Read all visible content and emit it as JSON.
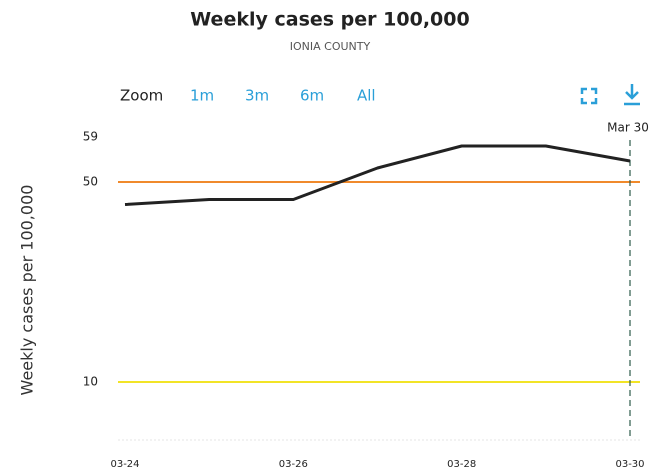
{
  "chart_data": {
    "type": "line",
    "title": "Weekly cases per 100,000",
    "subtitle": "IONIA COUNTY",
    "y_label": "Weekly cases per 100,000",
    "zoom": {
      "label": "Zoom",
      "options": [
        "1m",
        "3m",
        "6m",
        "All"
      ]
    },
    "x": [
      "03-24",
      "03-25",
      "03-26",
      "03-27",
      "03-28",
      "03-29",
      "03-30"
    ],
    "series": [
      {
        "name": "Weekly cases per 100,000",
        "color": "#222222",
        "values": [
          45.5,
          46.5,
          46.5,
          52.8,
          57.2,
          57.2,
          54.2
        ]
      }
    ],
    "xticks": [
      "03-24",
      "03-26",
      "03-28",
      "03-30"
    ],
    "ylim": [
      0,
      60
    ],
    "yticks": [
      10,
      50,
      59
    ],
    "plot_lines": [
      {
        "value": 50,
        "color": "#f08a2c"
      },
      {
        "value": 10,
        "color": "#f2e426"
      }
    ],
    "crosshair": {
      "x": "03-30",
      "label": "Mar 30"
    }
  }
}
